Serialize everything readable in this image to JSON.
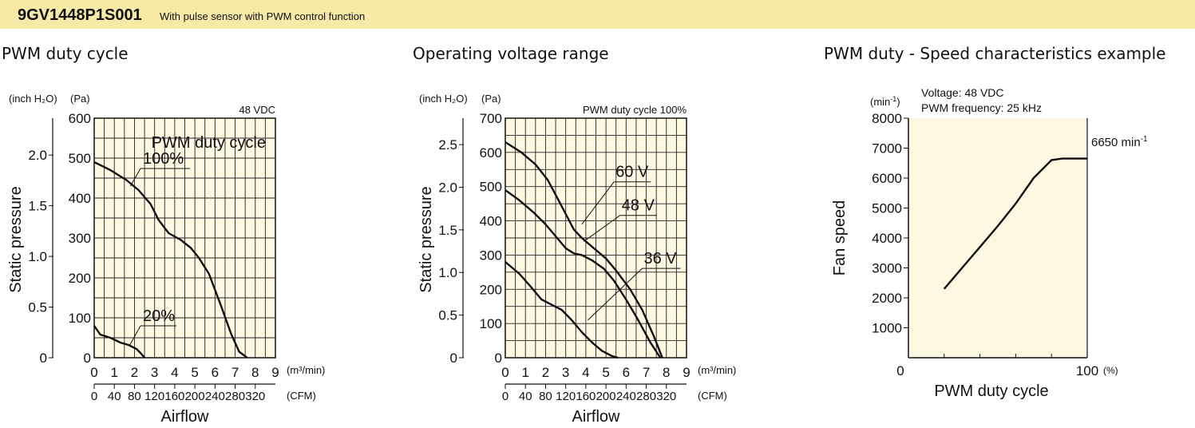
{
  "header": {
    "model": "9GV1448P1S001",
    "description": "With pulse sensor with PWM control function",
    "background": "#f7e9a6"
  },
  "colors": {
    "plot_bg": "#fdf8e2",
    "line": "#111111",
    "grid": "#222222"
  },
  "chart_data": [
    {
      "type": "line",
      "title": "PWM duty cycle",
      "annotation_top_right": "48 VDC",
      "legend_caption": "PWM duty cycle",
      "xlabel": "Airflow",
      "ylabel": "Static pressure",
      "x_unit": "(m³/min)",
      "x2_unit": "(CFM)",
      "y_unit_left": "(inch H₂O)",
      "y_unit_right": "(Pa)",
      "xlim": [
        0,
        9
      ],
      "ylim": [
        0,
        600
      ],
      "x_ticks": [
        "0",
        "1",
        "2",
        "3",
        "4",
        "5",
        "6",
        "7",
        "8",
        "9"
      ],
      "y_ticks": [
        "600",
        "500",
        "400",
        "300",
        "200",
        "100",
        "0"
      ],
      "x2_ticks": [
        "0",
        "40",
        "80",
        "120",
        "160",
        "200",
        "240",
        "280",
        "320"
      ],
      "x2_values": [
        0,
        40,
        80,
        120,
        160,
        200,
        240,
        280,
        320
      ],
      "y2_ticks": [
        "2.0",
        "1.5",
        "1.0",
        "0.5",
        "0"
      ],
      "y2_values": [
        2.0,
        1.5,
        1.0,
        0.5,
        0
      ],
      "series": [
        {
          "name": "100%",
          "x": [
            0,
            0.8,
            1.6,
            2.2,
            2.8,
            3.2,
            3.7,
            4.3,
            4.8,
            5.2,
            5.7,
            6.3,
            6.8,
            7.2,
            7.6
          ],
          "y": [
            490,
            470,
            445,
            420,
            385,
            345,
            312,
            295,
            275,
            250,
            210,
            130,
            60,
            15,
            0
          ],
          "label_at": [
            2.3,
            498
          ]
        },
        {
          "name": "20%",
          "x": [
            0,
            0.3,
            0.8,
            1.3,
            1.7,
            2.1,
            2.3,
            2.5
          ],
          "y": [
            80,
            58,
            50,
            38,
            32,
            22,
            12,
            0
          ],
          "label_at": [
            2.3,
            104
          ]
        }
      ]
    },
    {
      "type": "line",
      "title": "Operating voltage range",
      "annotation_top_right": "PWM duty cycle 100%",
      "xlabel": "Airflow",
      "ylabel": "Static pressure",
      "x_unit": "(m³/min)",
      "x2_unit": "(CFM)",
      "y_unit_left": "(inch H₂O)",
      "y_unit_right": "(Pa)",
      "xlim": [
        0,
        9
      ],
      "ylim": [
        0,
        700
      ],
      "x_ticks": [
        "0",
        "1",
        "2",
        "3",
        "4",
        "5",
        "6",
        "7",
        "8",
        "9"
      ],
      "y_ticks": [
        "700",
        "600",
        "500",
        "400",
        "300",
        "200",
        "100",
        "0"
      ],
      "x2_ticks": [
        "0",
        "40",
        "80",
        "120",
        "160",
        "200",
        "240",
        "280",
        "320"
      ],
      "x2_values": [
        0,
        40,
        80,
        120,
        160,
        200,
        240,
        280,
        320
      ],
      "y2_ticks": [
        "2.5",
        "2.0",
        "1.5",
        "1.0",
        "0.5",
        "0"
      ],
      "y2_values": [
        2.5,
        2.0,
        1.5,
        1.0,
        0.5,
        0
      ],
      "series": [
        {
          "name": "60 V",
          "x": [
            0,
            0.8,
            1.5,
            2.1,
            2.6,
            3.0,
            3.4,
            3.8,
            4.4,
            5.0,
            5.5,
            6.2,
            6.8,
            7.4,
            7.8
          ],
          "y": [
            630,
            600,
            565,
            520,
            465,
            420,
            375,
            350,
            320,
            290,
            255,
            200,
            140,
            60,
            0
          ],
          "label_at": [
            5.4,
            542
          ]
        },
        {
          "name": "48 V",
          "x": [
            0,
            0.7,
            1.4,
            2.0,
            2.5,
            3.0,
            3.4,
            3.8,
            4.3,
            4.9,
            5.4,
            6.0,
            6.6,
            7.2,
            7.7
          ],
          "y": [
            490,
            460,
            425,
            390,
            355,
            320,
            305,
            300,
            285,
            260,
            225,
            170,
            110,
            45,
            0
          ],
          "label_at": [
            5.7,
            444
          ]
        },
        {
          "name": "36 V",
          "x": [
            0,
            0.7,
            1.3,
            1.8,
            2.3,
            2.8,
            3.3,
            3.8,
            4.3,
            4.8,
            5.3,
            5.6
          ],
          "y": [
            280,
            245,
            205,
            170,
            155,
            140,
            110,
            75,
            45,
            20,
            5,
            0
          ],
          "label_at": [
            6.8,
            289
          ]
        }
      ]
    },
    {
      "type": "line",
      "title": "PWM duty - Speed characteristics example",
      "notes": [
        "Voltage: 48 VDC",
        "PWM frequency: 25 kHz"
      ],
      "end_label": "6650 min",
      "end_label_sup": "-1",
      "xlabel": "PWM duty cycle",
      "ylabel": "Fan speed",
      "y_unit": "(min",
      "y_unit_sup": "-1",
      "y_unit_close": ")",
      "x_unit": "(%)",
      "xlim": [
        0,
        100
      ],
      "ylim": [
        0,
        8000
      ],
      "x_ticks": [
        "0",
        "100"
      ],
      "y_ticks": [
        "8000",
        "7000",
        "6000",
        "5000",
        "4000",
        "3000",
        "2000",
        "1000"
      ],
      "series": [
        {
          "x": [
            20,
            30,
            40,
            50,
            60,
            70,
            80,
            86,
            90,
            100
          ],
          "y": [
            2300,
            3000,
            3700,
            4400,
            5150,
            6000,
            6600,
            6650,
            6650,
            6650
          ]
        }
      ]
    }
  ]
}
